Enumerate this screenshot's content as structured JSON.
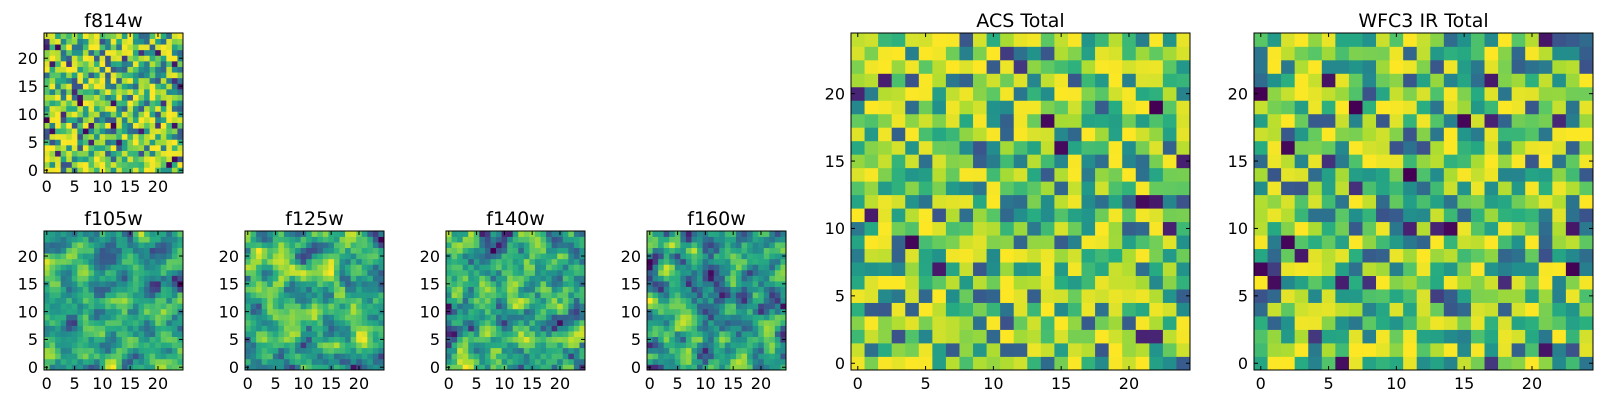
{
  "chart_data": [
    {
      "id": "f814w",
      "type": "heatmap",
      "title": "f814w",
      "grid_size": 25,
      "xlim": [
        0,
        25
      ],
      "ylim": [
        0,
        25
      ],
      "xticks": [
        0,
        5,
        10,
        15,
        20
      ],
      "yticks": [
        0,
        5,
        10,
        15,
        20
      ],
      "colormap": "viridis",
      "seed": 814,
      "smoothing": 0
    },
    {
      "id": "f105w",
      "type": "heatmap",
      "title": "f105w",
      "grid_size": 25,
      "xlim": [
        0,
        25
      ],
      "ylim": [
        0,
        25
      ],
      "xticks": [
        0,
        5,
        10,
        15,
        20
      ],
      "yticks": [
        0,
        5,
        10,
        15,
        20
      ],
      "colormap": "viridis",
      "seed": 105,
      "smoothing": 1
    },
    {
      "id": "f125w",
      "type": "heatmap",
      "title": "f125w",
      "grid_size": 25,
      "xlim": [
        0,
        25
      ],
      "ylim": [
        0,
        25
      ],
      "xticks": [
        0,
        5,
        10,
        15,
        20
      ],
      "yticks": [
        0,
        5,
        10,
        15,
        20
      ],
      "colormap": "viridis",
      "seed": 125,
      "smoothing": 1
    },
    {
      "id": "f140w",
      "type": "heatmap",
      "title": "f140w",
      "grid_size": 25,
      "xlim": [
        0,
        25
      ],
      "ylim": [
        0,
        25
      ],
      "xticks": [
        0,
        5,
        10,
        15,
        20
      ],
      "yticks": [
        0,
        5,
        10,
        15,
        20
      ],
      "colormap": "viridis",
      "seed": 140,
      "smoothing": 1
    },
    {
      "id": "f160w",
      "type": "heatmap",
      "title": "f160w",
      "grid_size": 25,
      "xlim": [
        0,
        25
      ],
      "ylim": [
        0,
        25
      ],
      "xticks": [
        0,
        5,
        10,
        15,
        20
      ],
      "yticks": [
        0,
        5,
        10,
        15,
        20
      ],
      "colormap": "viridis",
      "seed": 160,
      "smoothing": 1
    },
    {
      "id": "acs-total",
      "type": "heatmap",
      "title": "ACS Total",
      "grid_size": 25,
      "xlim": [
        0,
        25
      ],
      "ylim": [
        0,
        25
      ],
      "xticks": [
        0,
        5,
        10,
        15,
        20
      ],
      "yticks": [
        0,
        5,
        10,
        15,
        20
      ],
      "colormap": "viridis",
      "seed": 2001,
      "smoothing": 0
    },
    {
      "id": "wfc3-ir-total",
      "type": "heatmap",
      "title": "WFC3 IR Total",
      "grid_size": 25,
      "xlim": [
        0,
        25
      ],
      "ylim": [
        0,
        25
      ],
      "xticks": [
        0,
        5,
        10,
        15,
        20
      ],
      "yticks": [
        0,
        5,
        10,
        15,
        20
      ],
      "colormap": "viridis",
      "seed": 3001,
      "smoothing": 0
    }
  ]
}
